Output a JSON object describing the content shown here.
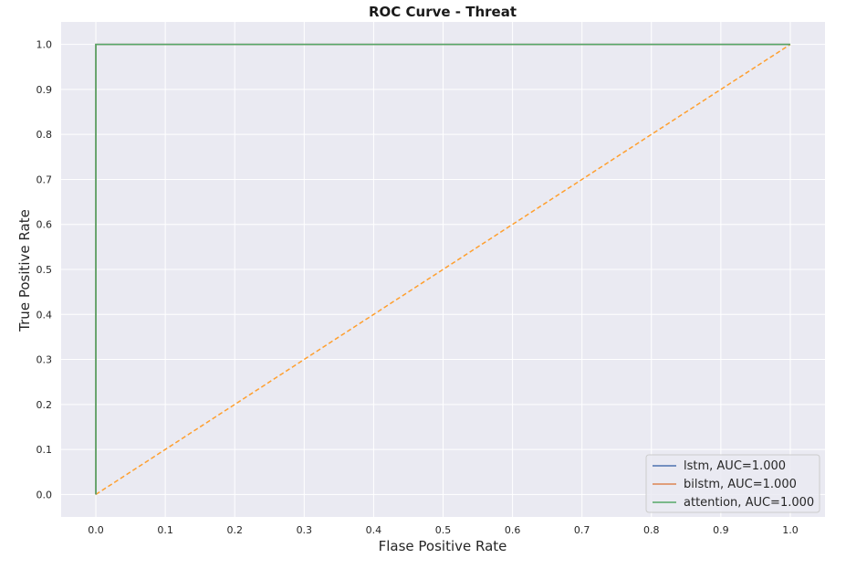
{
  "chart_data": {
    "type": "line",
    "title": "ROC Curve - Threat",
    "xlabel": "Flase Positive Rate",
    "ylabel": "True Positive Rate",
    "xlim": [
      -0.05,
      1.05
    ],
    "ylim": [
      -0.05,
      1.05
    ],
    "xticks": [
      "0.0",
      "0.1",
      "0.2",
      "0.3",
      "0.4",
      "0.5",
      "0.6",
      "0.7",
      "0.8",
      "0.9",
      "1.0"
    ],
    "yticks": [
      "0.0",
      "0.1",
      "0.2",
      "0.3",
      "0.4",
      "0.5",
      "0.6",
      "0.7",
      "0.8",
      "0.9",
      "1.0"
    ],
    "grid": true,
    "legend_position": "lower-right",
    "series": [
      {
        "name": "lstm, AUC=1.000",
        "color": "#4c72b0",
        "style": "solid",
        "x": [
          0.0,
          0.0,
          1.0
        ],
        "y": [
          0.0,
          1.0,
          1.0
        ]
      },
      {
        "name": "bilstm, AUC=1.000",
        "color": "#dd8452",
        "style": "solid",
        "x": [
          0.0,
          0.0,
          1.0
        ],
        "y": [
          0.0,
          1.0,
          1.0
        ]
      },
      {
        "name": "attention, AUC=1.000",
        "color": "#55a868",
        "style": "solid",
        "x": [
          0.0,
          0.0,
          1.0
        ],
        "y": [
          0.0,
          1.0,
          1.0
        ]
      }
    ],
    "reference_line": {
      "color": "#ff9f2e",
      "style": "dashed",
      "x": [
        0.0,
        1.0
      ],
      "y": [
        0.0,
        1.0
      ]
    }
  }
}
